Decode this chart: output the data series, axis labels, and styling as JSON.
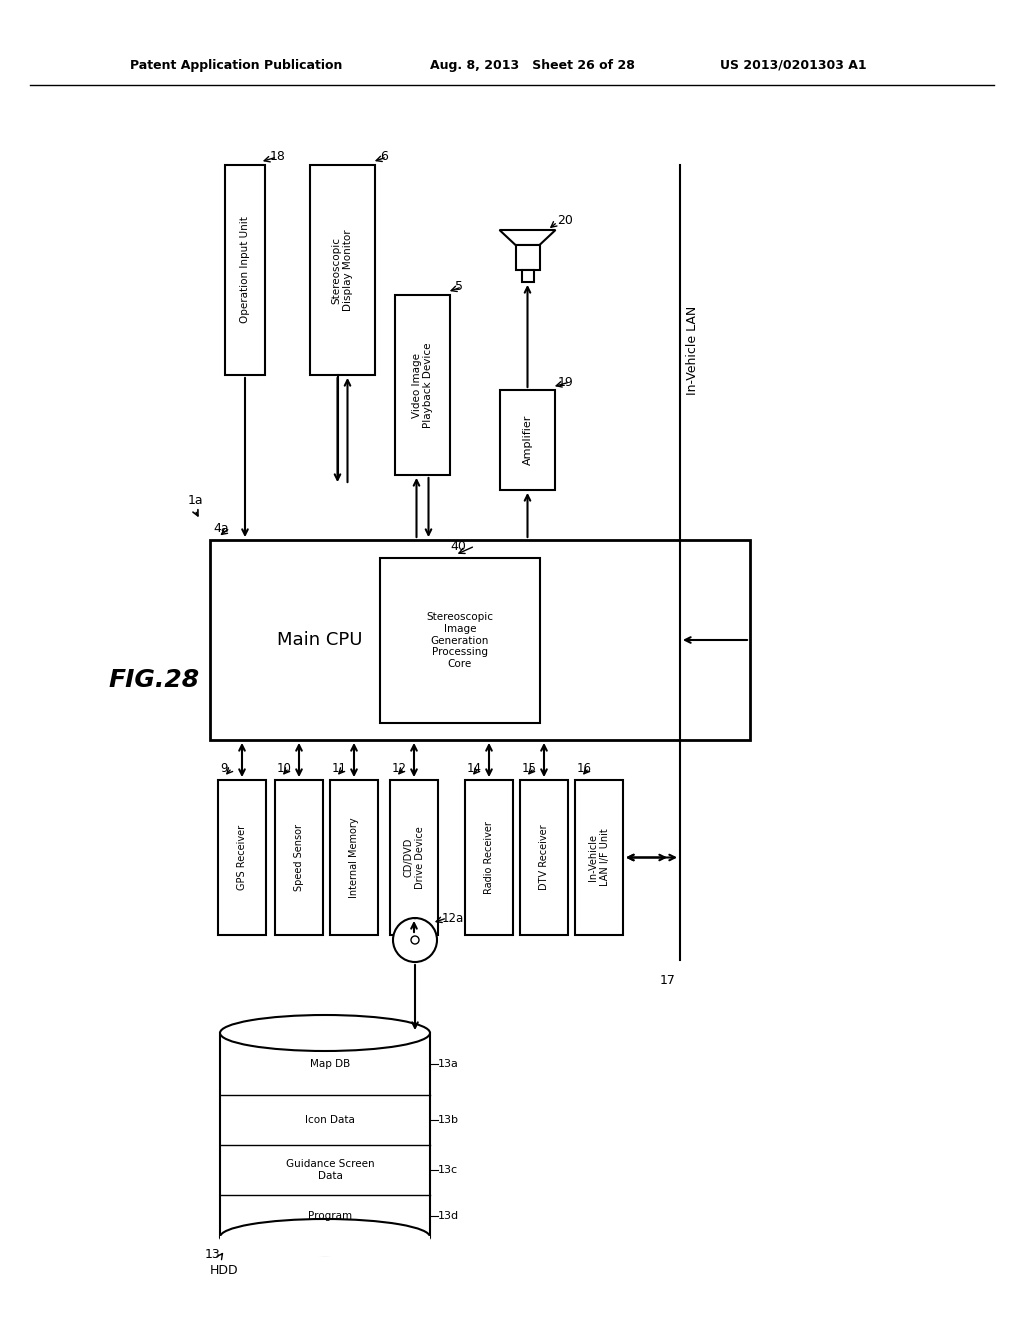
{
  "title_left": "Patent Application Publication",
  "title_mid": "Aug. 8, 2013   Sheet 26 of 28",
  "title_right": "US 2013/0201303 A1",
  "fig_label": "FIG.28",
  "bg_color": "#ffffff",
  "line_color": "#000000",
  "font_color": "#000000",
  "boxes": {
    "operation_input": {
      "label": "Operation Input Unit",
      "ref": "18"
    },
    "stereo_monitor": {
      "label": "Stereoscopic\nDisplay Monitor",
      "ref": "6"
    },
    "video_playback": {
      "label": "Video Image\nPlayback Device",
      "ref": "5"
    },
    "amplifier": {
      "label": "Amplifier",
      "ref": "19"
    },
    "speaker": {
      "ref": "20"
    },
    "main_cpu": {
      "label": "Main CPU",
      "ref": "4a"
    },
    "stereo_core": {
      "label": "Stereoscopic\nImage\nGeneration\nProcessing\nCore",
      "ref": "40"
    },
    "gps": {
      "label": "GPS Receiver",
      "ref": "9"
    },
    "speed": {
      "label": "Speed Sensor",
      "ref": "10"
    },
    "memory": {
      "label": "Internal Memory",
      "ref": "11"
    },
    "cddvd": {
      "label": "CD/DVD\nDrive Device",
      "ref": "12"
    },
    "radio": {
      "label": "Radio Receiver",
      "ref": "14"
    },
    "dtv": {
      "label": "DTV Receiver",
      "ref": "15"
    },
    "lan_unit": {
      "label": "In-Vehicle\nLAN I/F Unit",
      "ref": "16"
    },
    "hdd": {
      "label": "HDD",
      "ref": "13"
    },
    "map_db": {
      "label": "Map DB",
      "ref": "13a"
    },
    "icon_data": {
      "label": "Icon Data",
      "ref": "13b"
    },
    "guidance": {
      "label": "Guidance Screen\nData",
      "ref": "13c"
    },
    "program": {
      "label": "Program",
      "ref": "13d"
    },
    "disc": {
      "ref": "12a"
    },
    "in_vehicle_lan": {
      "label": "In-Vehicle LAN",
      "ref": "17"
    },
    "system_label": {
      "ref": "1a"
    }
  }
}
